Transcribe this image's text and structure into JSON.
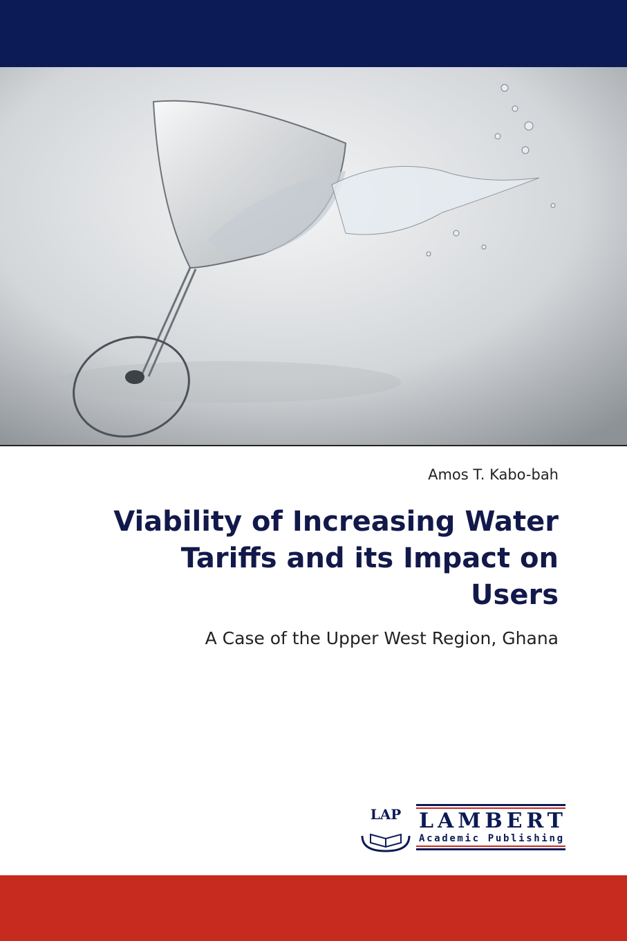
{
  "cover": {
    "author": "Amos T. Kabo-bah",
    "title_lines": [
      "Viability of Increasing Water",
      "Tariffs and its Impact on",
      "Users"
    ],
    "subtitle": "A Case of the Upper West Region, Ghana",
    "publisher": {
      "mark": "LAP",
      "name": "LAMBERT",
      "tagline": "Academic Publishing"
    }
  }
}
